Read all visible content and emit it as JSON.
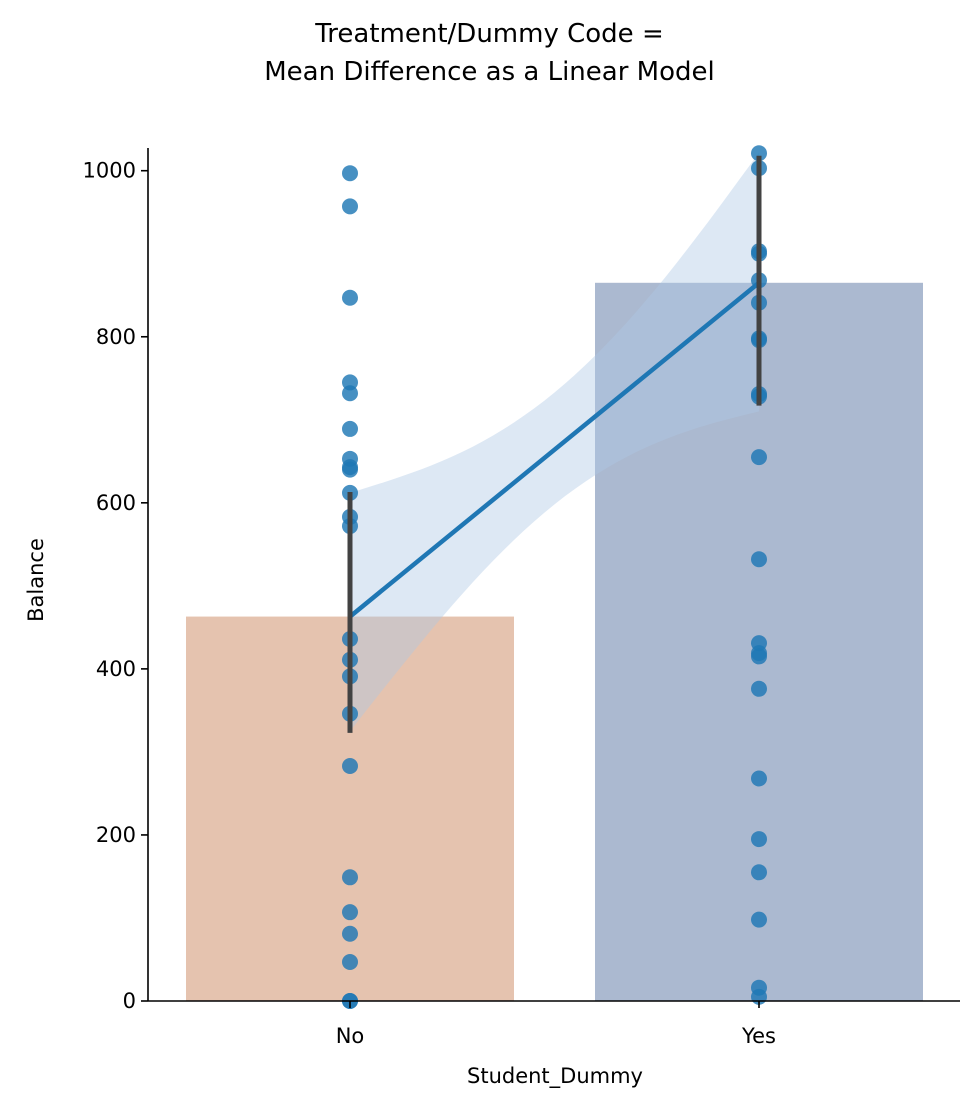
{
  "chart_data": {
    "type": "bar",
    "title_lines": [
      "Treatment/Dummy Code =",
      "Mean Difference as a Linear Model"
    ],
    "xlabel": "Student_Dummy",
    "ylabel": "Balance",
    "categories": [
      "No",
      "Yes"
    ],
    "bar_values": [
      463,
      865
    ],
    "bar_colors": [
      "#e5c3af",
      "#abb9d0"
    ],
    "error_bars": [
      [
        323,
        613
      ],
      [
        717,
        1018
      ]
    ],
    "ylim": [
      0,
      1025
    ],
    "yticks": [
      0,
      200,
      400,
      600,
      800,
      1000
    ],
    "ytick_labels": [
      "0",
      "200",
      "400",
      "600",
      "800",
      "1000"
    ],
    "points": [
      {
        "category": "No",
        "values": [
          997,
          957,
          847,
          745,
          732,
          689,
          653,
          643,
          640,
          612,
          583,
          572,
          436,
          411,
          391,
          346,
          283,
          149,
          107,
          81,
          47,
          0,
          0
        ]
      },
      {
        "category": "Yes",
        "values": [
          1021,
          1003,
          903,
          900,
          868,
          841,
          798,
          796,
          731,
          728,
          655,
          532,
          431,
          419,
          415,
          376,
          268,
          195,
          155,
          98,
          16,
          5
        ]
      }
    ],
    "regression": {
      "x": [
        0,
        1
      ],
      "y": [
        463,
        865
      ],
      "ci_lower_at_x0": 325,
      "ci_upper_at_x0": 612,
      "ci_lower_at_x1": 710,
      "ci_upper_at_x1": 1022
    },
    "point_color": "#1f77b4",
    "line_color": "#1f77b4",
    "band_color": "#aec9e5",
    "errorbar_color": "#424242",
    "grid": false,
    "legend": "none"
  }
}
